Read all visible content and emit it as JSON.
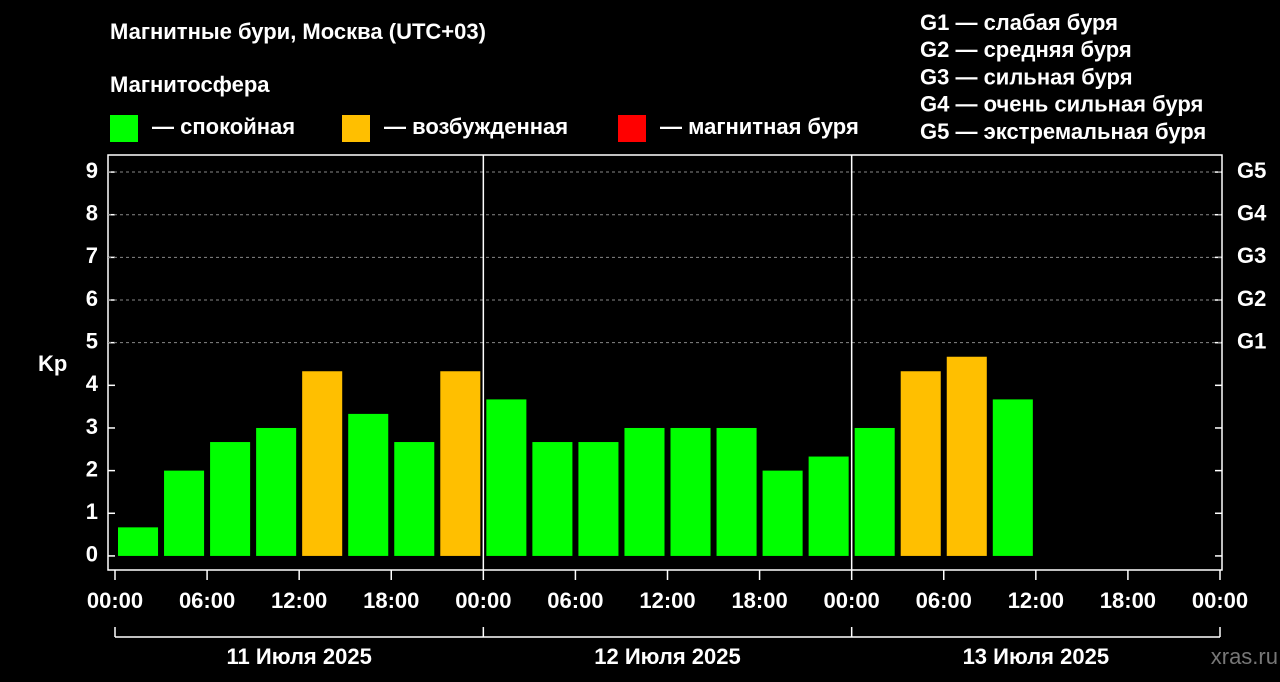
{
  "chart_data": {
    "type": "bar",
    "title": "Магнитные бури, Москва (UTC+03)",
    "legend_title": "Магнитосфера",
    "legend": [
      {
        "name": "— спокойная",
        "color": "#00ff00"
      },
      {
        "name": "— возбужденная",
        "color": "#ffbf00"
      },
      {
        "name": "— магнитная буря",
        "color": "#ff0000"
      }
    ],
    "g_legend": [
      "G1 — слабая буря",
      "G2 — средняя буря",
      "G3 — сильная буря",
      "G4 — очень сильная буря",
      "G5 — экстремальная буря"
    ],
    "y_label": "Kp",
    "x": [
      0,
      3,
      6,
      9,
      12,
      15,
      18,
      21,
      24,
      27,
      30,
      33,
      36,
      39,
      42,
      45,
      48,
      51,
      54,
      57
    ],
    "values": [
      0.67,
      2,
      2.67,
      3,
      4.33,
      3.33,
      2.67,
      4.33,
      3.67,
      2.67,
      2.67,
      3,
      3,
      3,
      2,
      2.33,
      3,
      4.33,
      4.67,
      3.67
    ],
    "colors": [
      "#00ff00",
      "#00ff00",
      "#00ff00",
      "#00ff00",
      "#ffbf00",
      "#00ff00",
      "#00ff00",
      "#ffbf00",
      "#00ff00",
      "#00ff00",
      "#00ff00",
      "#00ff00",
      "#00ff00",
      "#00ff00",
      "#00ff00",
      "#00ff00",
      "#00ff00",
      "#ffbf00",
      "#ffbf00",
      "#00ff00"
    ],
    "xlim": [
      0,
      72
    ],
    "xticks": [
      {
        "value": 0,
        "label": "00:00"
      },
      {
        "value": 6,
        "label": "06:00"
      },
      {
        "value": 12,
        "label": "12:00"
      },
      {
        "value": 18,
        "label": "18:00"
      },
      {
        "value": 24,
        "label": "00:00"
      },
      {
        "value": 30,
        "label": "06:00"
      },
      {
        "value": 36,
        "label": "12:00"
      },
      {
        "value": 42,
        "label": "18:00"
      },
      {
        "value": 48,
        "label": "00:00"
      },
      {
        "value": 54,
        "label": "06:00"
      },
      {
        "value": 60,
        "label": "12:00"
      },
      {
        "value": 66,
        "label": "18:00"
      },
      {
        "value": 72,
        "label": "00:00"
      }
    ],
    "ylim": [
      -0.33,
      9.4
    ],
    "yticks": [
      0,
      1,
      2,
      3,
      4,
      5,
      6,
      7,
      8,
      9
    ],
    "g_ticks": [
      {
        "value": 5,
        "label": "G1"
      },
      {
        "value": 6,
        "label": "G2"
      },
      {
        "value": 7,
        "label": "G3"
      },
      {
        "value": 8,
        "label": "G4"
      },
      {
        "value": 9,
        "label": "G5"
      }
    ],
    "dates": [
      "11 Июля 2025",
      "12 Июля 2025",
      "13 Июля 2025"
    ],
    "watermark": "xras.ru"
  }
}
